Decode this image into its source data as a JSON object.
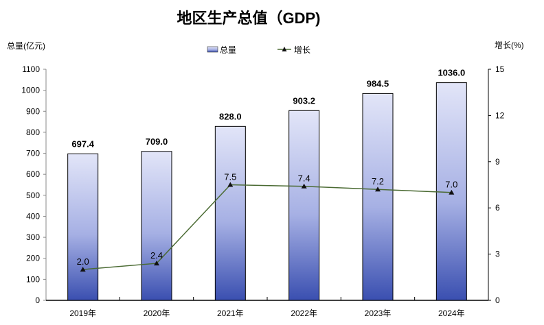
{
  "chart_data": {
    "type": "bar+line",
    "title": "地区生产总值（GDP)",
    "ylabel_left": "总量(亿元)",
    "ylabel_right": "增长(%)",
    "categories": [
      "2019年",
      "2020年",
      "2021年",
      "2022年",
      "2023年",
      "2024年"
    ],
    "series": [
      {
        "name": "总量",
        "type": "bar",
        "axis": "left",
        "values": [
          697.4,
          709.0,
          828.0,
          903.2,
          984.5,
          1036.0
        ],
        "labels": [
          "697.4",
          "709.0",
          "828.0",
          "903.2",
          "984.5",
          "1036.0"
        ]
      },
      {
        "name": "增长",
        "type": "line",
        "axis": "right",
        "values": [
          2.0,
          2.4,
          7.5,
          7.4,
          7.2,
          7.0
        ],
        "labels": [
          "2.0",
          "2.4",
          "7.5",
          "7.4",
          "7.2",
          "7.0"
        ]
      }
    ],
    "ylim_left": [
      0,
      1100
    ],
    "yticks_left": [
      "0",
      "100",
      "200",
      "300",
      "400",
      "500",
      "600",
      "700",
      "800",
      "900",
      "1000",
      "1100"
    ],
    "ylim_right": [
      0,
      15
    ],
    "yticks_right": [
      "0",
      "3",
      "6",
      "9",
      "12",
      "15"
    ],
    "grid": false,
    "legend_position": "top-center",
    "colors": {
      "bar_top": "#e2e5f8",
      "bar_bottom": "#3a4fb0",
      "line": "#4a6a32"
    }
  }
}
